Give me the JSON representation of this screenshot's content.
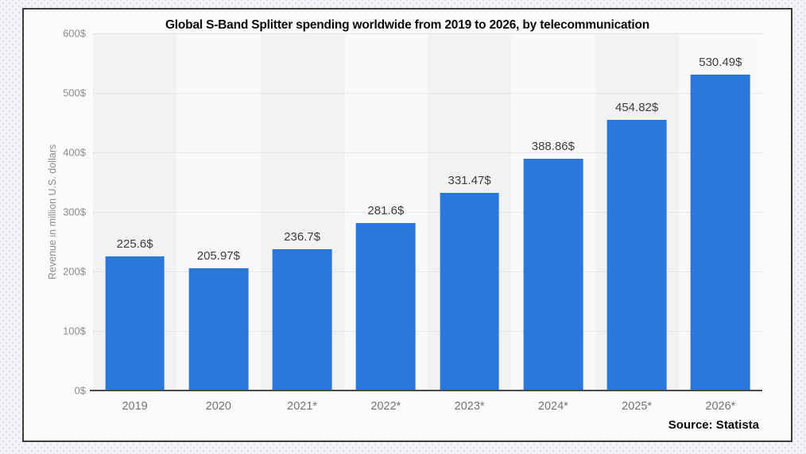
{
  "title": "Global S-Band Splitter spending worldwide from 2019 to 2026, by telecommunication",
  "source_label": "Source: Statista",
  "y_axis": {
    "label": "Revenue in million U.S. dollars",
    "ticks": [
      "600$",
      "500$",
      "400$",
      "300$",
      "200$",
      "100$",
      "0$"
    ]
  },
  "chart_data": {
    "type": "bar",
    "title": "Global S-Band Splitter spending worldwide from 2019 to 2026, by telecommunication",
    "categories": [
      "2019",
      "2020",
      "2021*",
      "2022*",
      "2023*",
      "2024*",
      "2025*",
      "2026*"
    ],
    "values": [
      225.6,
      205.97,
      236.7,
      281.6,
      331.47,
      388.86,
      454.82,
      530.49
    ],
    "value_labels": [
      "225.6$",
      "205.97$",
      "236.7$",
      "281.6$",
      "331.47$",
      "388.86$",
      "454.82$",
      "530.49$"
    ],
    "xlabel": "",
    "ylabel": "Revenue in million U.S. dollars",
    "ylim": [
      0,
      600
    ],
    "ytick_step": 100,
    "grid": true,
    "legend": false,
    "bar_color": "#2c77dc"
  },
  "colors": {
    "bar": "#2c77dc",
    "axis_line": "#4a4a4a",
    "grid_line": "#d4d4d4",
    "title_text": "#0a0a0a",
    "value_label_text": "#3d3d3d",
    "y_tick_text": "#8c8c8c",
    "category_text": "#737373"
  }
}
